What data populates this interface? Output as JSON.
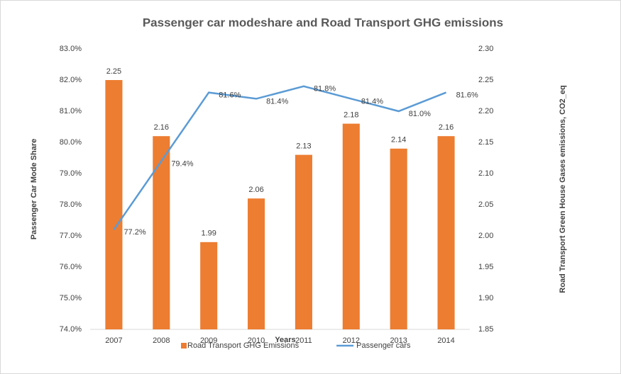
{
  "chart_data": {
    "type": "bar-line",
    "title": "Passenger car modeshare and Road Transport GHG emissions",
    "x_label": "Years",
    "y_label": "Passenger Car  Mode Share",
    "y2_label": "Road Transport Green House Gases  emissions, CO2_eq",
    "categories": [
      "2007",
      "2008",
      "2009",
      "2010",
      "2011",
      "2012",
      "2013",
      "2014"
    ],
    "series": [
      {
        "name": "Road Transport GHG Emissions",
        "type": "bar",
        "axis": "y2",
        "color": "#ed7d31",
        "values": [
          2.25,
          2.16,
          1.99,
          2.06,
          2.13,
          2.18,
          2.14,
          2.16
        ]
      },
      {
        "name": "Passenger cars",
        "type": "line",
        "axis": "y",
        "color": "#5b9bd5",
        "values": [
          77.2,
          79.4,
          81.6,
          81.4,
          81.8,
          81.4,
          81.0,
          81.6
        ],
        "value_labels": [
          "77.2%",
          "79.4%",
          "81.6%",
          "81.4%",
          "81.8%",
          "81.4%",
          "81.0%",
          "81.6%"
        ]
      }
    ],
    "ylim": [
      74,
      83
    ],
    "yticks": [
      {
        "value": 74,
        "label": "74.0%"
      },
      {
        "value": 75,
        "label": "75.0%"
      },
      {
        "value": 76,
        "label": "76.0%"
      },
      {
        "value": 77,
        "label": "77.0%"
      },
      {
        "value": 78,
        "label": "78.0%"
      },
      {
        "value": 79,
        "label": "79.0%"
      },
      {
        "value": 80,
        "label": "80.0%"
      },
      {
        "value": 81,
        "label": "81.0%"
      },
      {
        "value": 82,
        "label": "82.0%"
      },
      {
        "value": 83,
        "label": "83.0%"
      }
    ],
    "y2lim": [
      1.85,
      2.3
    ],
    "y2ticks": [
      1.85,
      {
        "value": 1.9,
        "label": "1.90"
      },
      1.95,
      {
        "value": 2.0,
        "label": "2.00"
      },
      2.05,
      {
        "value": 2.1,
        "label": "2.10"
      },
      2.15,
      {
        "value": 2.2,
        "label": "2.20"
      },
      2.25,
      {
        "value": 2.3,
        "label": "2.30"
      }
    ],
    "grid": false
  }
}
